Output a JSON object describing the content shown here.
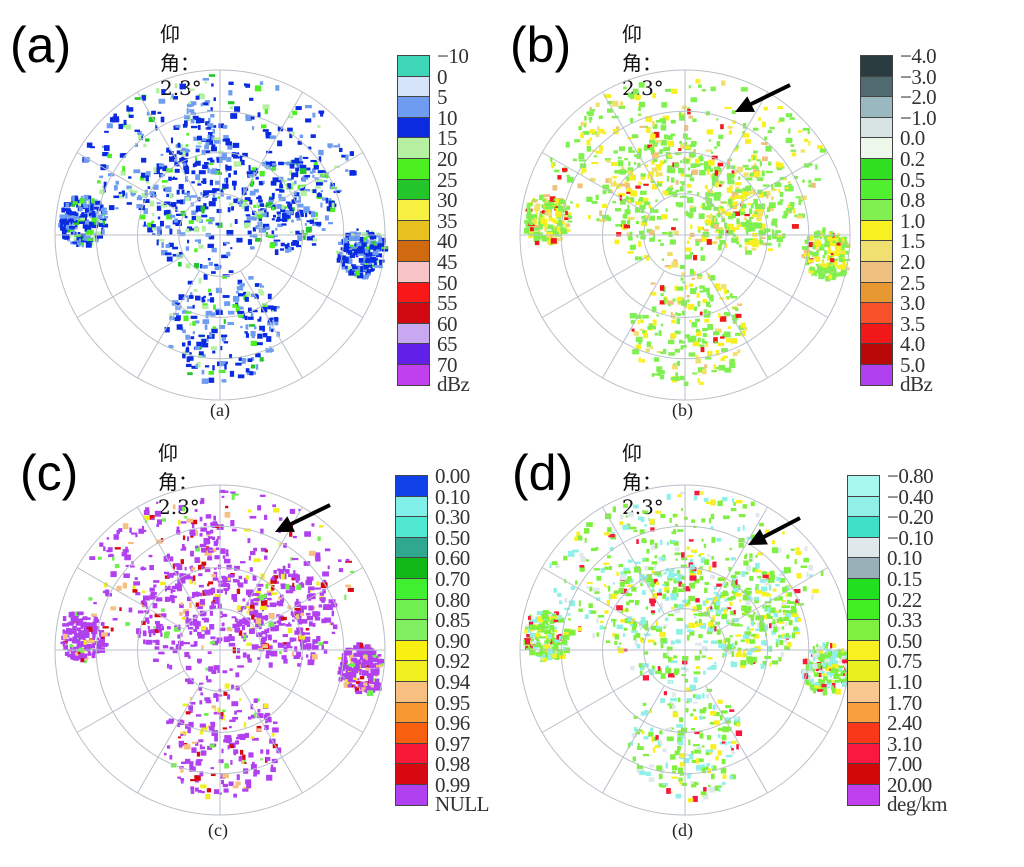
{
  "panels": [
    {
      "id": "a",
      "big_label": "(a)",
      "elevation": "仰角：2.3°",
      "caption": "(a)",
      "unit": "dBz",
      "ticks": [
        "−10",
        "0",
        "5",
        "10",
        "15",
        "20",
        "25",
        "30",
        "35",
        "40",
        "45",
        "50",
        "55",
        "60",
        "65",
        "70"
      ],
      "colors": [
        "#3fd6b8",
        "#d6e4fa",
        "#6e9cf0",
        "#0a2be0",
        "#b4f0a0",
        "#4cf020",
        "#22c62a",
        "#f8f040",
        "#e8c020",
        "#d06a10",
        "#f8c4c8",
        "#f81818",
        "#d00810",
        "#c8a8f0",
        "#6020e8",
        "#c040f0"
      ]
    },
    {
      "id": "b",
      "big_label": "(b)",
      "elevation": "仰角：2.3°",
      "caption": "(b)",
      "unit": "dBz",
      "ticks": [
        "−4.0",
        "−3.0",
        "−2.0",
        "−1.0",
        "0.0",
        "0.2",
        "0.5",
        "0.8",
        "1.0",
        "1.5",
        "2.0",
        "2.5",
        "3.0",
        "3.5",
        "4.0",
        "5.0"
      ],
      "colors": [
        "#2a3c40",
        "#506a70",
        "#9ab8c0",
        "#d8e4e4",
        "#eef8ea",
        "#30e020",
        "#50f030",
        "#80f050",
        "#f8f020",
        "#f0e070",
        "#f0c080",
        "#e89830",
        "#f85028",
        "#f01818",
        "#b80808",
        "#b040f0"
      ]
    },
    {
      "id": "c",
      "big_label": "(c)",
      "elevation": "仰角：2.3°",
      "caption": "(c)",
      "unit": "NULL",
      "ticks": [
        "0.00",
        "0.10",
        "0.30",
        "0.50",
        "0.60",
        "0.70",
        "0.80",
        "0.85",
        "0.90",
        "0.92",
        "0.94",
        "0.95",
        "0.96",
        "0.97",
        "0.98",
        "0.99"
      ],
      "colors": [
        "#1040e8",
        "#80f0e8",
        "#50e8d0",
        "#30a890",
        "#10b818",
        "#40f030",
        "#70f050",
        "#80f060",
        "#f8f010",
        "#f0f020",
        "#f8c080",
        "#f89830",
        "#f86010",
        "#f81838",
        "#d80810",
        "#b040f0"
      ]
    },
    {
      "id": "d",
      "big_label": "(d)",
      "elevation": "仰角：2.3°",
      "caption": "(d)",
      "unit": "deg/km",
      "ticks": [
        "−0.80",
        "−0.40",
        "−0.20",
        "−0.10",
        "0.10",
        "0.15",
        "0.22",
        "0.33",
        "0.50",
        "0.75",
        "1.10",
        "1.70",
        "2.40",
        "3.10",
        "7.00",
        "20.00"
      ],
      "colors": [
        "#a8f8f0",
        "#90f0e8",
        "#40e0c8",
        "#e0e8ec",
        "#9ab0b8",
        "#20e020",
        "#40f020",
        "#80f040",
        "#f8f020",
        "#e8f020",
        "#f8c890",
        "#f8a040",
        "#f83818",
        "#f81840",
        "#d00808",
        "#c040f0"
      ]
    }
  ],
  "chart_data": [
    {
      "type": "heatmap",
      "title": "仰角：2.3°",
      "panel": "(a)",
      "colorbar_ticks": [
        "−10",
        "0",
        "5",
        "10",
        "15",
        "20",
        "25",
        "30",
        "35",
        "40",
        "45",
        "50",
        "55",
        "60",
        "65",
        "70"
      ],
      "colorbar_unit": "dBz"
    },
    {
      "type": "heatmap",
      "title": "仰角：2.3°",
      "panel": "(b)",
      "colorbar_ticks": [
        "−4.0",
        "−3.0",
        "−2.0",
        "−1.0",
        "0.0",
        "0.2",
        "0.5",
        "0.8",
        "1.0",
        "1.5",
        "2.0",
        "2.5",
        "3.0",
        "3.5",
        "4.0",
        "5.0"
      ],
      "colorbar_unit": "dBz",
      "annotation": "arrow"
    },
    {
      "type": "heatmap",
      "title": "仰角：2.3°",
      "panel": "(c)",
      "colorbar_ticks": [
        "0.00",
        "0.10",
        "0.30",
        "0.50",
        "0.60",
        "0.70",
        "0.80",
        "0.85",
        "0.90",
        "0.92",
        "0.94",
        "0.95",
        "0.96",
        "0.97",
        "0.98",
        "0.99"
      ],
      "colorbar_unit": "NULL",
      "annotation": "arrow"
    },
    {
      "type": "heatmap",
      "title": "仰角：2.3°",
      "panel": "(d)",
      "colorbar_ticks": [
        "−0.80",
        "−0.40",
        "−0.20",
        "−0.10",
        "0.10",
        "0.15",
        "0.22",
        "0.33",
        "0.50",
        "0.75",
        "1.10",
        "1.70",
        "2.40",
        "3.10",
        "7.00",
        "20.00"
      ],
      "colorbar_unit": "deg/km",
      "annotation": "arrow"
    }
  ]
}
